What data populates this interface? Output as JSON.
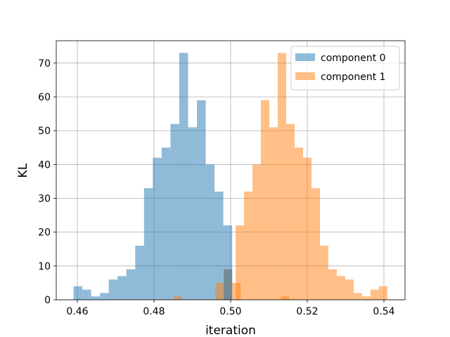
{
  "chart_data": {
    "type": "histogram",
    "xlabel": "iteration",
    "ylabel": "KL",
    "xlim": [
      0.4545,
      0.5455
    ],
    "ylim": [
      0,
      76.6
    ],
    "xticks": [
      0.46,
      0.48,
      0.5,
      0.52,
      0.54
    ],
    "xtick_labels": [
      "0.46",
      "0.48",
      "0.50",
      "0.52",
      "0.54"
    ],
    "yticks": [
      0,
      10,
      20,
      30,
      40,
      50,
      60,
      70
    ],
    "ytick_labels": [
      "0",
      "10",
      "20",
      "30",
      "40",
      "50",
      "60",
      "70"
    ],
    "grid": true,
    "legend_position": "upper right",
    "series": [
      {
        "name": "component 0",
        "color": "#1f77b4",
        "alpha": 0.5,
        "bins": [
          [
            0.459,
            0.4613,
            4
          ],
          [
            0.4613,
            0.4636,
            3
          ],
          [
            0.4636,
            0.4659,
            1
          ],
          [
            0.4659,
            0.4682,
            2
          ],
          [
            0.4682,
            0.4705,
            6
          ],
          [
            0.4705,
            0.4728,
            7
          ],
          [
            0.4728,
            0.4751,
            9
          ],
          [
            0.4751,
            0.4774,
            16
          ],
          [
            0.4774,
            0.4797,
            33
          ],
          [
            0.4797,
            0.482,
            42
          ],
          [
            0.482,
            0.4843,
            45
          ],
          [
            0.4843,
            0.4866,
            52
          ],
          [
            0.4866,
            0.4889,
            73
          ],
          [
            0.4889,
            0.4912,
            51
          ],
          [
            0.4912,
            0.4935,
            59
          ],
          [
            0.4935,
            0.4958,
            40
          ],
          [
            0.4958,
            0.4981,
            32
          ],
          [
            0.4981,
            0.5004,
            22
          ]
        ]
      },
      {
        "name": "component 1",
        "color": "#ff7f0e",
        "alpha": 0.5,
        "bins": [
          [
            0.4991,
            0.5013,
            0
          ],
          [
            0.5013,
            0.5035,
            22
          ],
          [
            0.5035,
            0.5057,
            32
          ],
          [
            0.5057,
            0.5079,
            40
          ],
          [
            0.5079,
            0.5101,
            59
          ],
          [
            0.5101,
            0.5123,
            51
          ],
          [
            0.5123,
            0.5145,
            73
          ],
          [
            0.5145,
            0.5167,
            52
          ],
          [
            0.5167,
            0.5189,
            45
          ],
          [
            0.5189,
            0.5211,
            42
          ],
          [
            0.5211,
            0.5233,
            33
          ],
          [
            0.5233,
            0.5255,
            16
          ],
          [
            0.5255,
            0.5277,
            9
          ],
          [
            0.5277,
            0.5299,
            7
          ],
          [
            0.5299,
            0.5321,
            6
          ],
          [
            0.5321,
            0.5343,
            2
          ],
          [
            0.5343,
            0.5365,
            1
          ],
          [
            0.5365,
            0.5387,
            3
          ],
          [
            0.5387,
            0.5409,
            4
          ]
        ]
      },
      {
        "name": "",
        "color": "#ff7f0e",
        "alpha": 0.5,
        "bins": [
          [
            0.4851,
            0.4873,
            1
          ],
          [
            0.496,
            0.4982,
            5
          ],
          [
            0.4982,
            0.5004,
            9
          ],
          [
            0.5004,
            0.5026,
            5
          ],
          [
            0.5131,
            0.5153,
            1
          ]
        ]
      },
      {
        "name": "",
        "color": "#1f77b4",
        "alpha": 0.5,
        "bins": [
          [
            0.4982,
            0.5004,
            9
          ]
        ]
      }
    ]
  }
}
